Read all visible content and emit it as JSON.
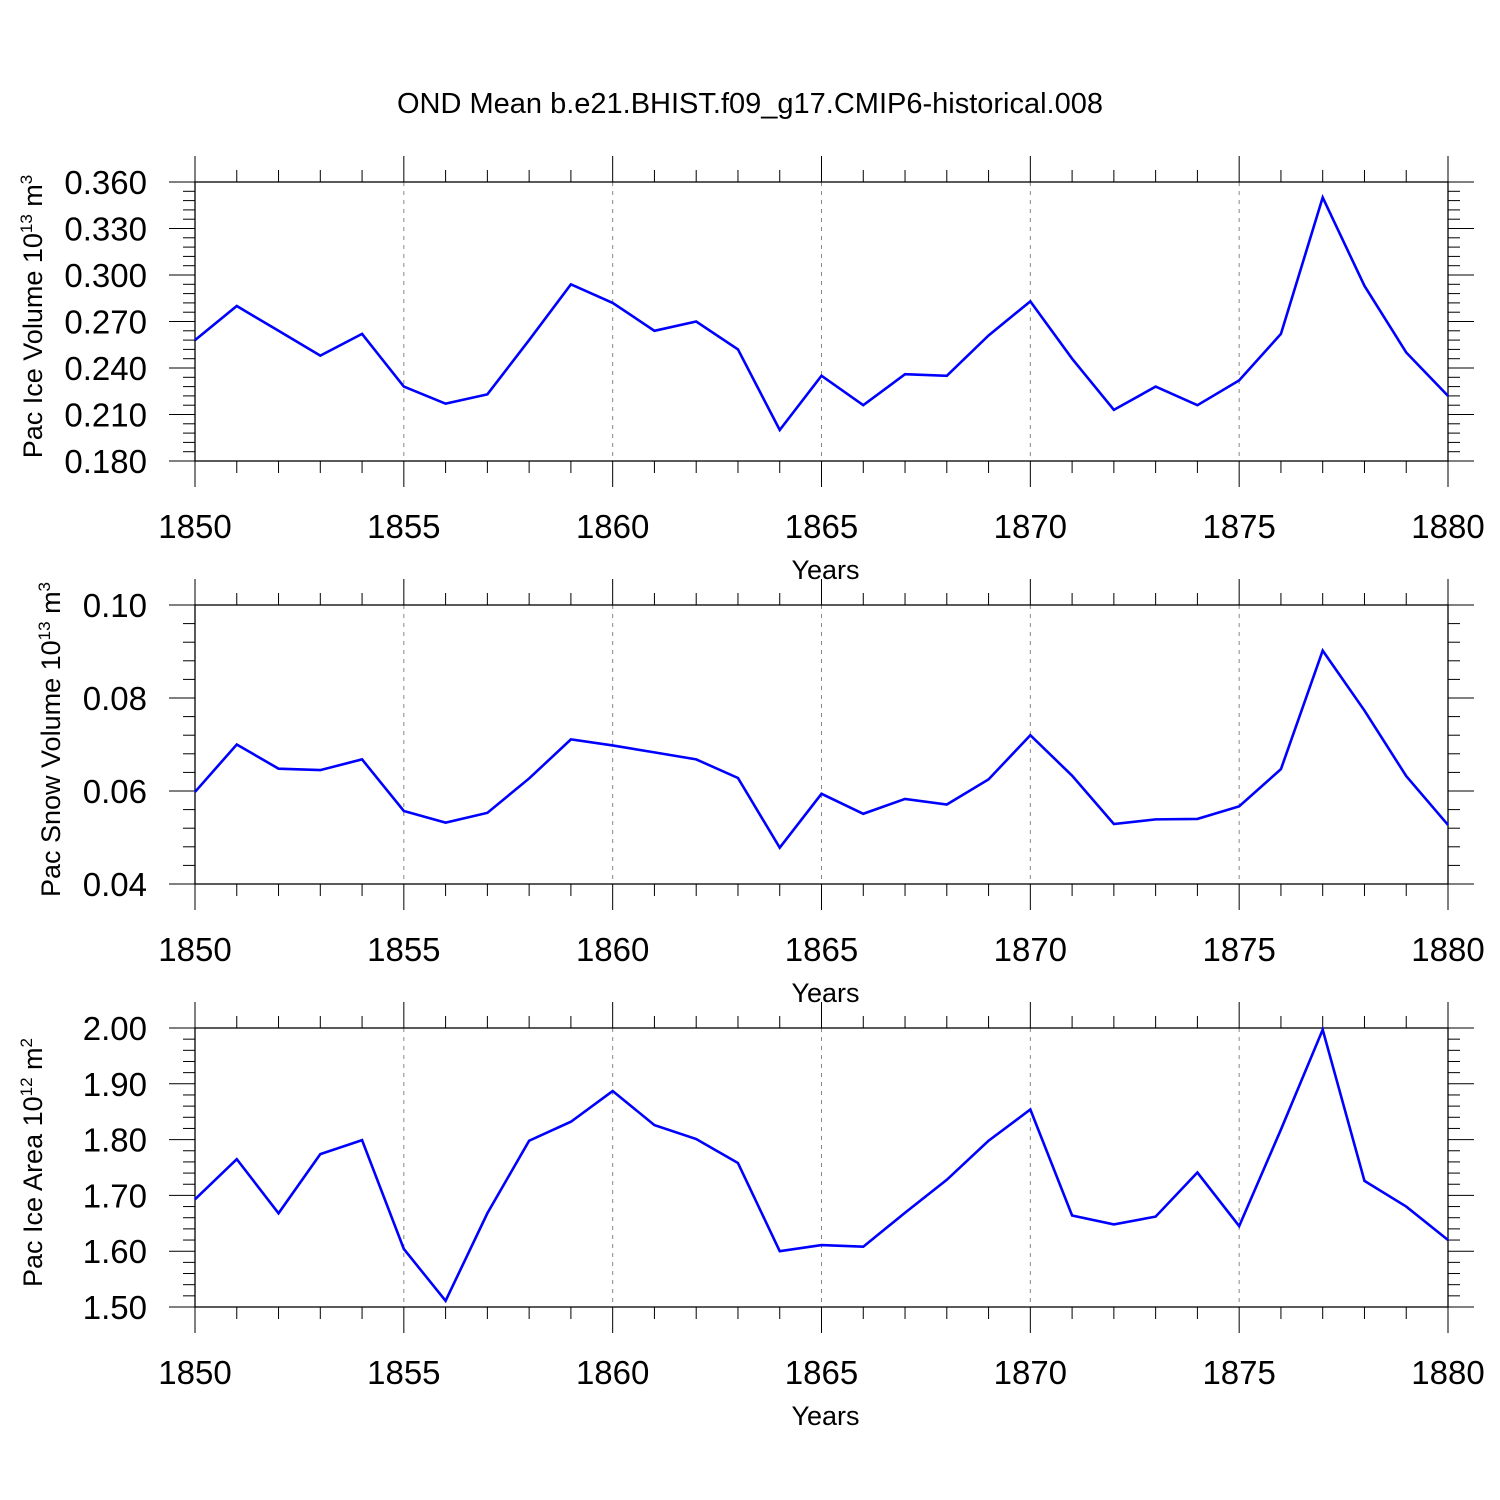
{
  "title": "OND Mean b.e21.BHIST.f09_g17.CMIP6-historical.008",
  "colors": {
    "line": "#0000ff",
    "frame": "#000000",
    "grid": "#888888"
  },
  "chart_data": [
    {
      "type": "line",
      "ylabel": "Pac Ice Volume 10",
      "ylabel_sup": "13",
      "ylabel_unit": " m",
      "ylabel_unit_sup": "3",
      "xlabel": "Years",
      "xlim": [
        1850,
        1880
      ],
      "ylim": [
        0.18,
        0.36
      ],
      "yticks": [
        0.18,
        0.21,
        0.24,
        0.27,
        0.3,
        0.33,
        0.36
      ],
      "yticklabels": [
        "0.180",
        "0.210",
        "0.240",
        "0.270",
        "0.300",
        "0.330",
        "0.360"
      ],
      "xticks": [
        1850,
        1855,
        1860,
        1865,
        1870,
        1875,
        1880
      ],
      "xticklabels": [
        "1850",
        "1855",
        "1860",
        "1865",
        "1870",
        "1875",
        "1880"
      ],
      "grid": "vertical dashed at major x ticks",
      "x": [
        1850,
        1851,
        1852,
        1853,
        1854,
        1855,
        1856,
        1857,
        1858,
        1859,
        1860,
        1861,
        1862,
        1863,
        1864,
        1865,
        1866,
        1867,
        1868,
        1869,
        1870,
        1871,
        1872,
        1873,
        1874,
        1875,
        1876,
        1877,
        1878,
        1879,
        1880
      ],
      "series": [
        {
          "name": "Pac Ice Volume",
          "values": [
            0.258,
            0.28,
            0.264,
            0.248,
            0.262,
            0.228,
            0.217,
            0.223,
            0.258,
            0.294,
            0.282,
            0.264,
            0.27,
            0.252,
            0.2,
            0.235,
            0.216,
            0.236,
            0.235,
            0.261,
            0.283,
            0.246,
            0.213,
            0.228,
            0.216,
            0.232,
            0.262,
            0.35,
            0.293,
            0.25,
            0.222
          ]
        }
      ]
    },
    {
      "type": "line",
      "ylabel": "Pac Snow Volume 10",
      "ylabel_sup": "13",
      "ylabel_unit": " m",
      "ylabel_unit_sup": "3",
      "xlabel": "Years",
      "xlim": [
        1850,
        1880
      ],
      "ylim": [
        0.04,
        0.1
      ],
      "yticks": [
        0.04,
        0.06,
        0.08,
        0.1
      ],
      "yticklabels": [
        "0.04",
        "0.06",
        "0.08",
        "0.10"
      ],
      "xticks": [
        1850,
        1855,
        1860,
        1865,
        1870,
        1875,
        1880
      ],
      "xticklabels": [
        "1850",
        "1855",
        "1860",
        "1865",
        "1870",
        "1875",
        "1880"
      ],
      "grid": "vertical dashed at major x ticks",
      "x": [
        1850,
        1851,
        1852,
        1853,
        1854,
        1855,
        1856,
        1857,
        1858,
        1859,
        1860,
        1861,
        1862,
        1863,
        1864,
        1865,
        1866,
        1867,
        1868,
        1869,
        1870,
        1871,
        1872,
        1873,
        1874,
        1875,
        1876,
        1877,
        1878,
        1879,
        1880
      ],
      "series": [
        {
          "name": "Pac Snow Volume",
          "values": [
            0.0598,
            0.07,
            0.0648,
            0.0645,
            0.0668,
            0.0557,
            0.0532,
            0.0553,
            0.0627,
            0.0711,
            0.0698,
            0.0683,
            0.0668,
            0.0628,
            0.0478,
            0.0594,
            0.0551,
            0.0583,
            0.0571,
            0.0625,
            0.072,
            0.0633,
            0.0529,
            0.0539,
            0.054,
            0.0567,
            0.0647,
            0.0902,
            0.0773,
            0.0632,
            0.0527
          ]
        }
      ]
    },
    {
      "type": "line",
      "ylabel": "Pac Ice Area 10",
      "ylabel_sup": "12",
      "ylabel_unit": " m",
      "ylabel_unit_sup": "2",
      "xlabel": "Years",
      "xlim": [
        1850,
        1880
      ],
      "ylim": [
        1.5,
        2.0
      ],
      "yticks": [
        1.5,
        1.6,
        1.7,
        1.8,
        1.9,
        2.0
      ],
      "yticklabels": [
        "1.50",
        "1.60",
        "1.70",
        "1.80",
        "1.90",
        "2.00"
      ],
      "xticks": [
        1850,
        1855,
        1860,
        1865,
        1870,
        1875,
        1880
      ],
      "xticklabels": [
        "1850",
        "1855",
        "1860",
        "1865",
        "1870",
        "1875",
        "1880"
      ],
      "grid": "vertical dashed at major x ticks",
      "x": [
        1850,
        1851,
        1852,
        1853,
        1854,
        1855,
        1856,
        1857,
        1858,
        1859,
        1860,
        1861,
        1862,
        1863,
        1864,
        1865,
        1866,
        1867,
        1868,
        1869,
        1870,
        1871,
        1872,
        1873,
        1874,
        1875,
        1876,
        1877,
        1878,
        1879,
        1880
      ],
      "series": [
        {
          "name": "Pac Ice Area",
          "values": [
            1.693,
            1.765,
            1.668,
            1.774,
            1.799,
            1.604,
            1.511,
            1.668,
            1.798,
            1.832,
            1.887,
            1.826,
            1.801,
            1.758,
            1.6,
            1.611,
            1.608,
            1.669,
            1.728,
            1.798,
            1.854,
            1.664,
            1.648,
            1.662,
            1.741,
            1.645,
            1.818,
            1.997,
            1.726,
            1.68,
            1.62
          ]
        }
      ]
    }
  ]
}
